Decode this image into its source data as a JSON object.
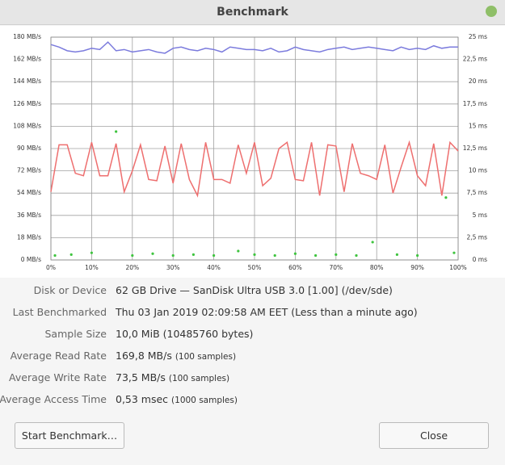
{
  "window": {
    "title": "Benchmark"
  },
  "chart_data": {
    "type": "line",
    "x": [
      0,
      2,
      4,
      6,
      8,
      10,
      12,
      14,
      16,
      18,
      20,
      22,
      24,
      26,
      28,
      30,
      32,
      34,
      36,
      38,
      40,
      42,
      44,
      46,
      48,
      50,
      52,
      54,
      56,
      58,
      60,
      62,
      64,
      66,
      68,
      70,
      72,
      74,
      76,
      78,
      80,
      82,
      84,
      86,
      88,
      90,
      92,
      94,
      96,
      98,
      100
    ],
    "series": [
      {
        "color": "#7b7bdd",
        "values": [
          174,
          172,
          169,
          168,
          169,
          171,
          170,
          176,
          169,
          170,
          168,
          169,
          170,
          168,
          167,
          171,
          172,
          170,
          169,
          171,
          170,
          168,
          172,
          171,
          170,
          170,
          169,
          171,
          168,
          169,
          172,
          170,
          169,
          168,
          170,
          171,
          172,
          170,
          171,
          172,
          171,
          170,
          169,
          172,
          170,
          171,
          170,
          173,
          171,
          172,
          172
        ]
      },
      {
        "color": "#ee6f6f",
        "values": [
          55,
          93,
          93,
          70,
          68,
          95,
          68,
          68,
          94,
          55,
          72,
          93,
          65,
          64,
          92,
          62,
          94,
          65,
          52,
          95,
          65,
          65,
          62,
          93,
          70,
          95,
          60,
          66,
          90,
          95,
          65,
          64,
          95,
          52,
          93,
          92,
          55,
          94,
          70,
          68,
          65,
          93,
          54,
          75,
          95,
          68,
          60,
          94,
          52,
          95,
          88
        ]
      },
      {
        "type": "scatter",
        "color": "#3fc43f",
        "axis": "y2",
        "x": [
          1,
          5,
          10,
          16,
          20,
          25,
          30,
          35,
          40,
          46,
          50,
          55,
          60,
          65,
          70,
          75,
          79,
          85,
          90,
          97,
          99
        ],
        "values": [
          0.5,
          0.6,
          0.8,
          14.4,
          0.5,
          0.7,
          0.5,
          0.6,
          0.5,
          1.0,
          0.6,
          0.5,
          0.7,
          0.5,
          0.6,
          0.5,
          2.0,
          0.6,
          0.5,
          7.0,
          0.8
        ]
      }
    ],
    "xlim": [
      0,
      100
    ],
    "xticks": [
      {
        "value": 0,
        "label": "0%"
      },
      {
        "value": 10,
        "label": "10%"
      },
      {
        "value": 20,
        "label": "20%"
      },
      {
        "value": 30,
        "label": "30%"
      },
      {
        "value": 40,
        "label": "40%"
      },
      {
        "value": 50,
        "label": "50%"
      },
      {
        "value": 60,
        "label": "60%"
      },
      {
        "value": 70,
        "label": "70%"
      },
      {
        "value": 80,
        "label": "80%"
      },
      {
        "value": 90,
        "label": "90%"
      },
      {
        "value": 100,
        "label": "100%"
      }
    ],
    "ylim": [
      0,
      180
    ],
    "yticks": [
      {
        "value": 180,
        "label": "180 MB/s"
      },
      {
        "value": 162,
        "label": "162 MB/s"
      },
      {
        "value": 144,
        "label": "144 MB/s"
      },
      {
        "value": 126,
        "label": "126 MB/s"
      },
      {
        "value": 108,
        "label": "108 MB/s"
      },
      {
        "value": 90,
        "label": "90 MB/s"
      },
      {
        "value": 72,
        "label": "72 MB/s"
      },
      {
        "value": 54,
        "label": "54 MB/s"
      },
      {
        "value": 36,
        "label": "36 MB/s"
      },
      {
        "value": 18,
        "label": "18 MB/s"
      },
      {
        "value": 0,
        "label": "0 MB/s"
      }
    ],
    "y2lim": [
      0,
      25
    ],
    "y2ticks": [
      {
        "value": 25,
        "label": "25 ms"
      },
      {
        "value": 22.5,
        "label": "22,5 ms"
      },
      {
        "value": 20,
        "label": "20 ms"
      },
      {
        "value": 17.5,
        "label": "17,5 ms"
      },
      {
        "value": 15,
        "label": "15 ms"
      },
      {
        "value": 12.5,
        "label": "12,5 ms"
      },
      {
        "value": 10,
        "label": "10 ms"
      },
      {
        "value": 7.5,
        "label": "7,5 ms"
      },
      {
        "value": 5,
        "label": "5 ms"
      },
      {
        "value": 2.5,
        "label": "2,5 ms"
      },
      {
        "value": 0,
        "label": "0 ms"
      }
    ],
    "grid": true
  },
  "info": [
    {
      "label": "Disk or Device",
      "value": "62 GB Drive — SanDisk Ultra USB 3.0 [1.00] (/dev/sde)"
    },
    {
      "label": "Last Benchmarked",
      "value": "Thu 03 Jan 2019 02:09:58 AM EET (Less than a minute ago)"
    },
    {
      "label": "Sample Size",
      "value": "10,0 MiB (10485760 bytes)"
    },
    {
      "label": "Average Read Rate",
      "value": "169,8 MB/s",
      "note": "(100 samples)"
    },
    {
      "label": "Average Write Rate",
      "value": "73,5 MB/s",
      "note": "(100 samples)"
    },
    {
      "label": "Average Access Time",
      "value": "0,53 msec",
      "note": "(1000 samples)"
    }
  ],
  "buttons": {
    "start": "Start Benchmark…",
    "close": "Close"
  }
}
